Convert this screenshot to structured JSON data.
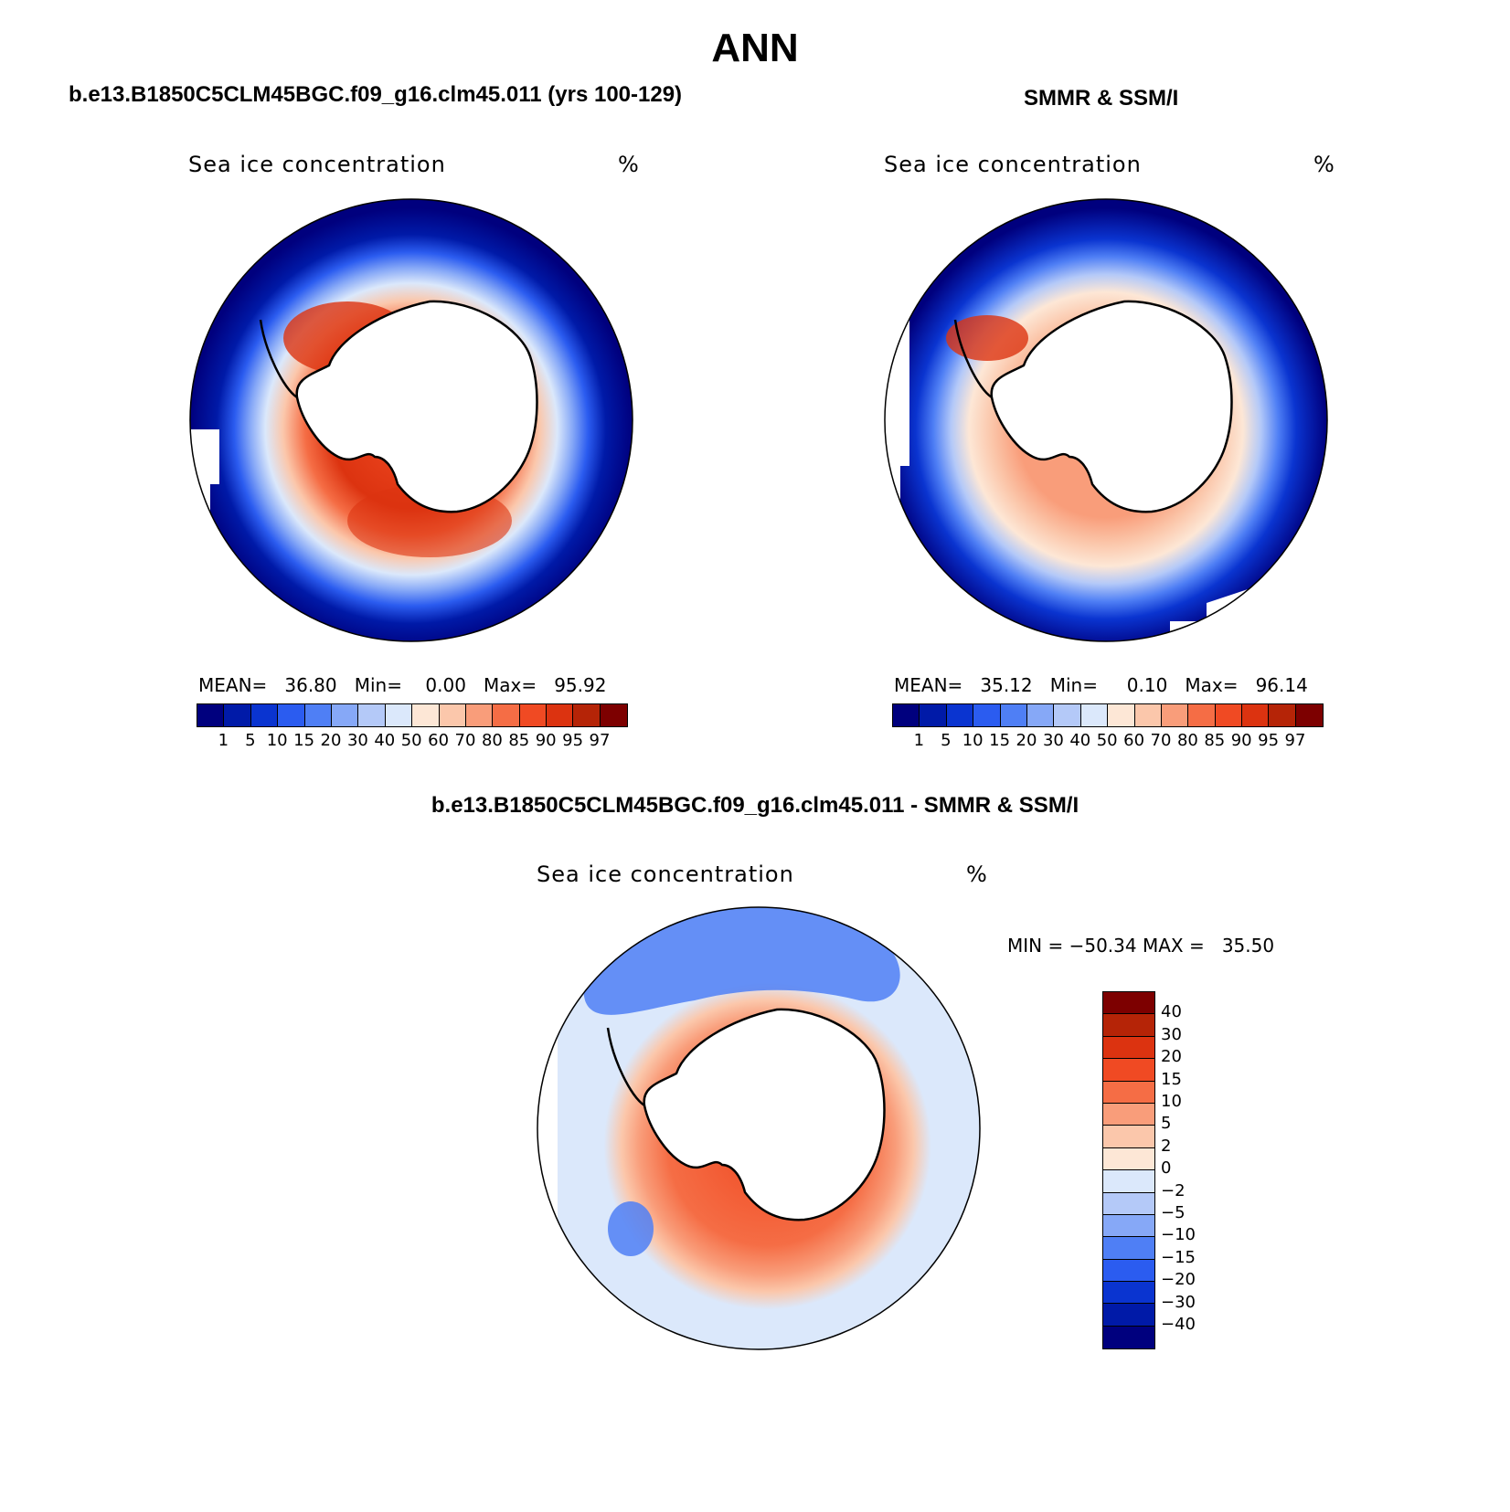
{
  "season": "ANN",
  "panels": [
    {
      "id": "model",
      "subtitle": "b.e13.B1850C5CLM45BGC.f09_g16.clm45.011 (yrs 100-129)",
      "variable": "Sea ice concentration",
      "units": "%",
      "stats": {
        "mean_label": "MEAN=",
        "mean": "36.80",
        "min_label": "Min=",
        "min": "0.00",
        "max_label": "Max=",
        "max": "95.92"
      }
    },
    {
      "id": "obs",
      "subtitle": "SMMR & SSM/I",
      "variable": "Sea ice concentration",
      "units": "%",
      "stats": {
        "mean_label": "MEAN=",
        "mean": "35.12",
        "min_label": "Min=",
        "min": "0.10",
        "max_label": "Max=",
        "max": "96.14"
      }
    },
    {
      "id": "diff",
      "subtitle": "b.e13.B1850C5CLM45BGC.f09_g16.clm45.011 - SMMR & SSM/I",
      "variable": "Sea ice concentration",
      "units": "%",
      "stats": {
        "min_label": "MIN =",
        "min": "−50.34",
        "max_label": "MAX =",
        "max": "35.50"
      }
    }
  ],
  "colorbar_abs": {
    "colors": [
      "#00007e",
      "#001aa8",
      "#0a34d0",
      "#2b5cf0",
      "#4f7ff5",
      "#86a8f7",
      "#b4c9f8",
      "#dbe8fb",
      "#fde7d6",
      "#fbc7ab",
      "#f99d7a",
      "#f56d45",
      "#f04a23",
      "#dc3310",
      "#b52407",
      "#7d0000"
    ],
    "labels": [
      "1",
      "5",
      "10",
      "15",
      "20",
      "30",
      "40",
      "50",
      "60",
      "70",
      "80",
      "85",
      "90",
      "95",
      "97"
    ]
  },
  "colorbar_diff": {
    "colors": [
      "#7d0000",
      "#b52407",
      "#dc3310",
      "#f04a23",
      "#f56d45",
      "#f99d7a",
      "#fbc7ab",
      "#fde7d6",
      "#dbe8fb",
      "#b4c9f8",
      "#86a8f7",
      "#4f7ff5",
      "#2b5cf0",
      "#0a34d0",
      "#001aa8",
      "#00007e"
    ],
    "labels": [
      "40",
      "30",
      "20",
      "15",
      "10",
      "5",
      "2",
      "0",
      "−2",
      "−5",
      "−10",
      "−15",
      "−20",
      "−30",
      "−40"
    ]
  }
}
